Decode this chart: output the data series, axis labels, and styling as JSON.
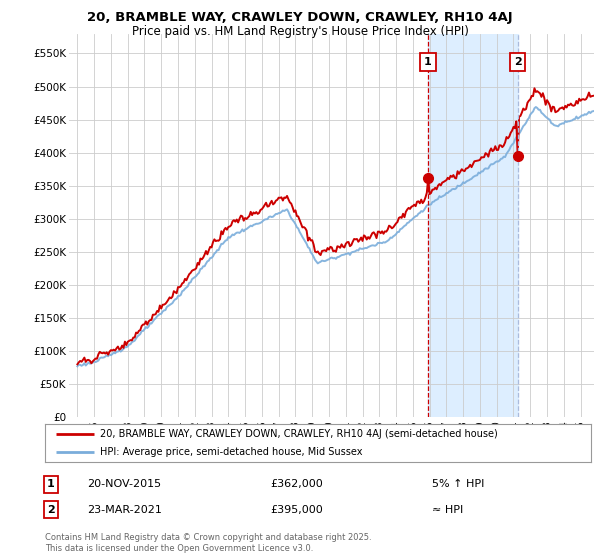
{
  "title": "20, BRAMBLE WAY, CRAWLEY DOWN, CRAWLEY, RH10 4AJ",
  "subtitle": "Price paid vs. HM Land Registry's House Price Index (HPI)",
  "legend_label_red": "20, BRAMBLE WAY, CRAWLEY DOWN, CRAWLEY, RH10 4AJ (semi-detached house)",
  "legend_label_blue": "HPI: Average price, semi-detached house, Mid Sussex",
  "annotation1_label": "1",
  "annotation1_date": "20-NOV-2015",
  "annotation1_price": "£362,000",
  "annotation1_hpi": "5% ↑ HPI",
  "annotation2_label": "2",
  "annotation2_date": "23-MAR-2021",
  "annotation2_price": "£395,000",
  "annotation2_hpi": "≈ HPI",
  "footnote": "Contains HM Land Registry data © Crown copyright and database right 2025.\nThis data is licensed under the Open Government Licence v3.0.",
  "vline1_year": 2015.9,
  "vline2_year": 2021.25,
  "sale1_price": 362000,
  "sale2_price": 395000,
  "ylim_min": 0,
  "ylim_max": 580000,
  "xlim_min": 1994.5,
  "xlim_max": 2025.8,
  "ytick_labels": [
    "£0",
    "£50K",
    "£100K",
    "£150K",
    "£200K",
    "£250K",
    "£300K",
    "£350K",
    "£400K",
    "£450K",
    "£500K",
    "£550K"
  ],
  "ytick_values": [
    0,
    50000,
    100000,
    150000,
    200000,
    250000,
    300000,
    350000,
    400000,
    450000,
    500000,
    550000
  ],
  "xtick_years": [
    1995,
    1996,
    1997,
    1998,
    1999,
    2000,
    2001,
    2002,
    2003,
    2004,
    2005,
    2006,
    2007,
    2008,
    2009,
    2010,
    2011,
    2012,
    2013,
    2014,
    2015,
    2016,
    2017,
    2018,
    2019,
    2020,
    2021,
    2022,
    2023,
    2024,
    2025
  ],
  "red_color": "#cc0000",
  "blue_color": "#7aaddb",
  "vline1_color": "#cc0000",
  "vline2_color": "#aabbdd",
  "shade_color": "#ddeeff",
  "background_color": "#ffffff",
  "grid_color": "#cccccc",
  "title_fontsize": 9.5,
  "subtitle_fontsize": 8.5
}
